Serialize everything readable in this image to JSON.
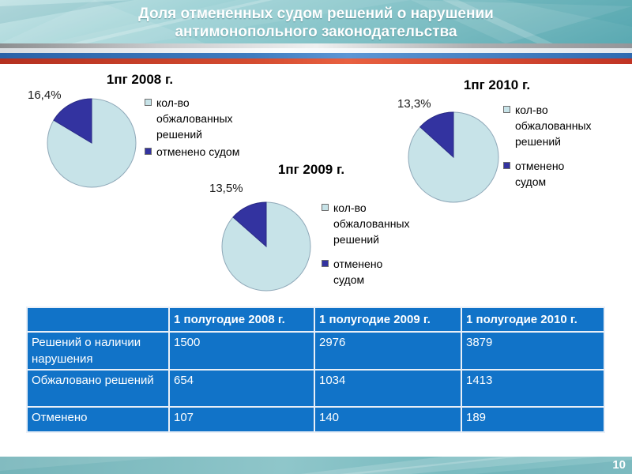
{
  "slide": {
    "title": "Доля отмененных судом решений о нарушении антимонопольного законодательства",
    "title_line1": "Доля отмененных судом решений о нарушении",
    "title_line2": "антимонопольного законодательства",
    "page_number": "10"
  },
  "colors": {
    "table_bg": "#1173C8",
    "table_border": "#E9EFF7",
    "teal_light": "#C6E4E6",
    "teal_dark": "#5AA9B2",
    "flag_blue": "#3E7CC0",
    "flag_red": "#D44C30",
    "pie_light": "#C7E3E8",
    "pie_dark": "#3333A0"
  },
  "chart_data": [
    {
      "type": "pie",
      "title": "1пг 2008 г.",
      "percent_label": "16,4%",
      "slices": [
        {
          "name": "кол-во обжалованных решений",
          "value": 83.6,
          "color": "#C7E3E8"
        },
        {
          "name": "отменено судом",
          "value": 16.4,
          "color": "#3333A0"
        }
      ],
      "legend": [
        {
          "text": "кол-во\nобжалованных\nрешений"
        },
        {
          "text": "отменено  судом"
        }
      ]
    },
    {
      "type": "pie",
      "title": "1пг 2009 г.",
      "percent_label": "13,5%",
      "slices": [
        {
          "name": "кол-во обжалованных решений",
          "value": 86.5,
          "color": "#C7E3E8"
        },
        {
          "name": "отменено судом",
          "value": 13.5,
          "color": "#3333A0"
        }
      ],
      "legend": [
        {
          "text": "кол-во\nобжалованных\nрешений"
        },
        {
          "text": "отменено\nсудом"
        }
      ]
    },
    {
      "type": "pie",
      "title": "1пг 2010 г.",
      "percent_label": "13,3%",
      "slices": [
        {
          "name": "кол-во обжалованных решений",
          "value": 86.7,
          "color": "#C7E3E8"
        },
        {
          "name": "отменено судом",
          "value": 13.3,
          "color": "#3333A0"
        }
      ],
      "legend": [
        {
          "text": "кол-во\nобжалованных\nрешений"
        },
        {
          "text": "отменено\nсудом"
        }
      ]
    },
    {
      "type": "table",
      "headers": [
        "",
        "1 полугодие 2008 г.",
        "1 полугодие 2009 г.",
        "1 полугодие 2010 г."
      ],
      "rows": [
        [
          "Решений о наличии нарушения",
          "1500",
          "2976",
          "3879"
        ],
        [
          "Обжаловано решений",
          "654",
          "1034",
          "1413"
        ],
        [
          "Отменено",
          "107",
          "140",
          "189"
        ]
      ]
    }
  ]
}
